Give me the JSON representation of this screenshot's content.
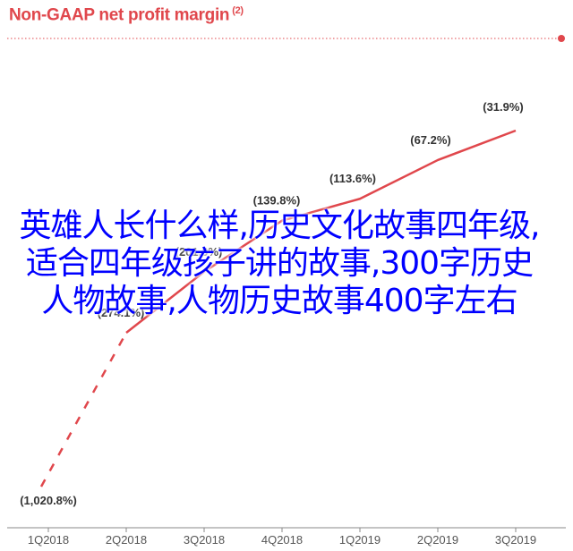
{
  "chart_data": {
    "type": "line",
    "title": "Non-GAAP net profit margin",
    "title_note": "(2)",
    "categories": [
      "1Q2018",
      "2Q2018",
      "3Q2018",
      "4Q2018",
      "1Q2019",
      "2Q2019",
      "3Q2019"
    ],
    "series": [
      {
        "values": [
          -1020.8,
          -274.1,
          -201.0,
          -139.8,
          -113.6,
          -67.2,
          -31.9
        ],
        "labels": [
          "(1,020.8%)",
          "(274.1%)",
          "(201.0%)",
          "(139.8%)",
          "(113.6%)",
          "(67.2%)",
          "(31.9%)"
        ],
        "dashed_until_index": 1
      }
    ],
    "xlabel": "",
    "ylabel": "",
    "grid": false,
    "colors": {
      "line": "#e0474c",
      "title": "#e0474c",
      "label": "#333333",
      "axis": "#888888"
    }
  },
  "overlay": {
    "text": "英雄人长什么样,历史文化故事四年级,适合四年级孩子讲的故事,300字历史人物故事,人物历史故事400字左右",
    "color": "#0000ff"
  }
}
